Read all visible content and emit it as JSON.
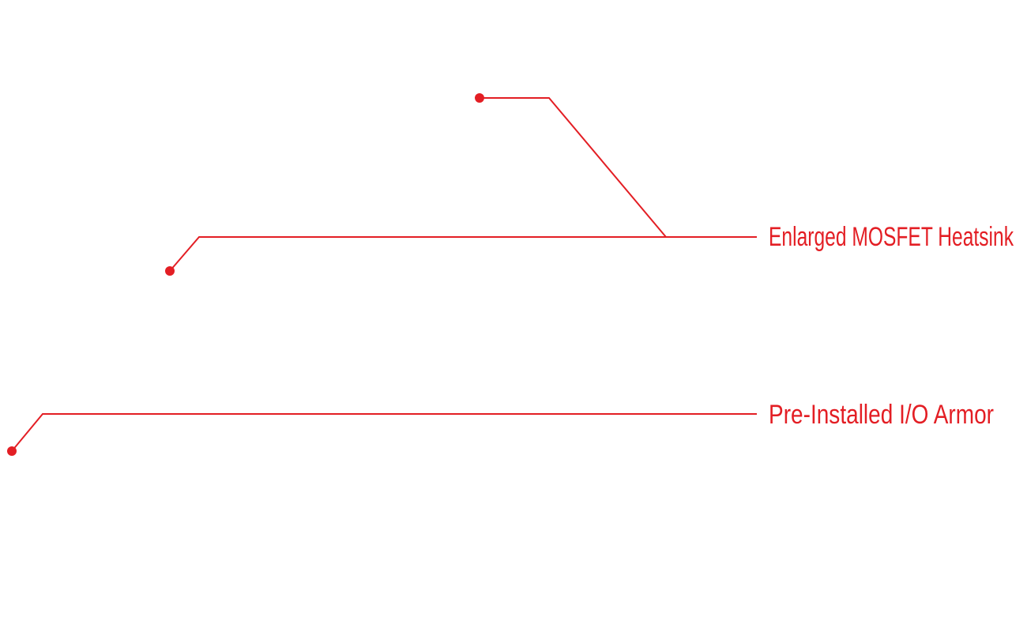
{
  "callouts": [
    {
      "label": "Enlarged MOSFET Heatsink"
    },
    {
      "label": "Pre-Installed I/O Armor"
    }
  ]
}
